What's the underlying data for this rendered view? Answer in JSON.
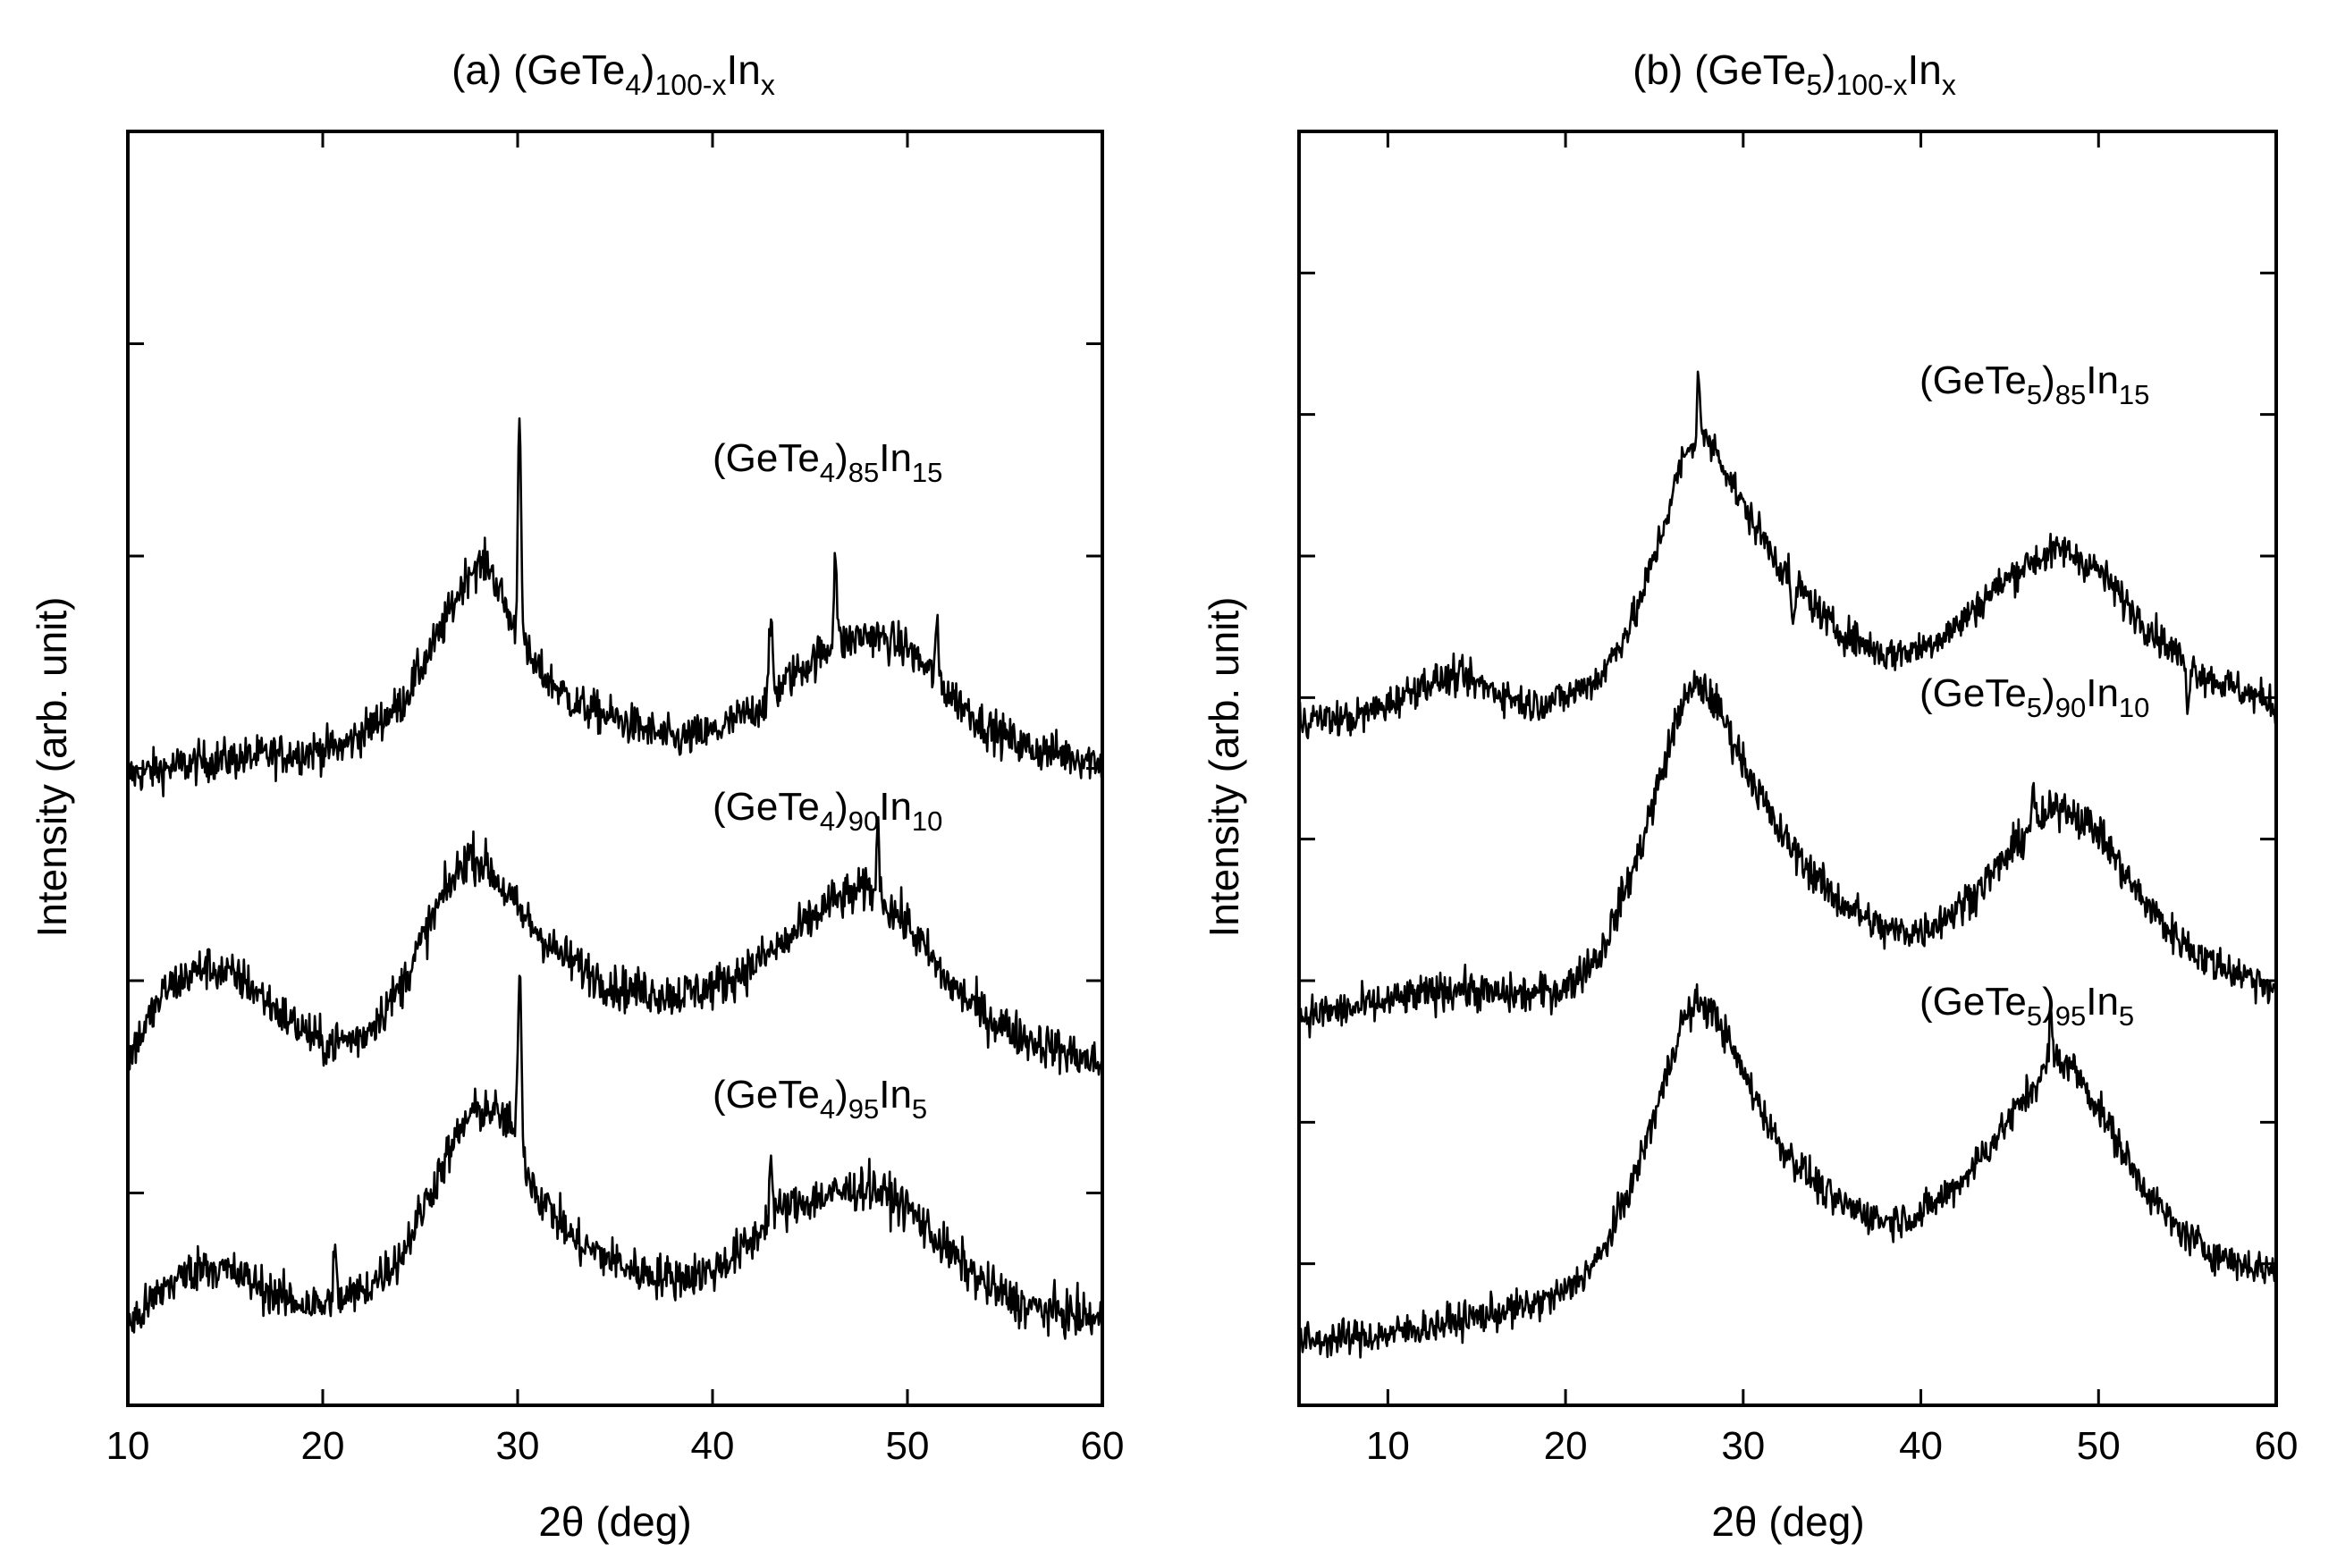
{
  "chart_data": [
    {
      "type": "line",
      "panel_label": "(a)",
      "title_base": "(GeTe",
      "title_base_sub": "4",
      "title_paren_close": ")",
      "title_sub": "100-x",
      "title_element": "In",
      "title_element_sub": "x",
      "xlabel": "2θ (deg)",
      "ylabel": "Intensity (arb. unit)",
      "xlim": [
        10,
        60
      ],
      "ylim": [
        0,
        9
      ],
      "x_ticks": [
        10,
        20,
        30,
        40,
        50,
        60
      ],
      "x_tick_labels": [
        "10",
        "20",
        "30",
        "40",
        "50",
        "60"
      ],
      "y_ticks": [
        1.5,
        3,
        4.5,
        6,
        7.5
      ],
      "y_tick_labels_visible": false,
      "grid": false,
      "series": [
        {
          "name": "(GeTe4)85In15",
          "label_base": "(GeTe",
          "label_base_sub": "4",
          "label_paren": ")",
          "label_sub": "85",
          "label_element": "In",
          "label_element_sub": "15",
          "x": [
            10,
            14,
            18,
            21,
            24,
            26,
            27.5,
            28.5,
            29.5,
            30,
            31,
            33,
            36,
            38,
            40,
            42,
            43,
            44,
            46,
            48,
            50,
            52,
            54,
            56,
            58,
            60
          ],
          "values": [
            4.45,
            4.55,
            4.6,
            4.65,
            4.95,
            5.45,
            5.9,
            5.95,
            5.6,
            5.4,
            5.2,
            4.95,
            4.8,
            4.7,
            4.75,
            4.9,
            5.0,
            5.15,
            5.35,
            5.45,
            5.35,
            5.05,
            4.8,
            4.65,
            4.6,
            4.55
          ],
          "peaks": [
            [
              30.1,
              1.65
            ],
            [
              43.0,
              0.55
            ],
            [
              46.3,
              0.65
            ],
            [
              51.5,
              0.35
            ]
          ],
          "noise": 0.14
        },
        {
          "name": "(GeTe4)90In10",
          "label_base": "(GeTe",
          "label_base_sub": "4",
          "label_paren": ")",
          "label_sub": "90",
          "label_element": "In",
          "label_element_sub": "10",
          "x": [
            10,
            12,
            14,
            16,
            18,
            20,
            22,
            24,
            26,
            27.5,
            28.5,
            30,
            32,
            35,
            38,
            40,
            42,
            44,
            46,
            48,
            50,
            52,
            54,
            56,
            58,
            60
          ],
          "values": [
            2.45,
            2.95,
            3.1,
            3.0,
            2.75,
            2.55,
            2.6,
            2.95,
            3.55,
            3.9,
            3.8,
            3.5,
            3.2,
            2.95,
            2.9,
            2.95,
            3.1,
            3.3,
            3.55,
            3.65,
            3.4,
            3.0,
            2.75,
            2.6,
            2.5,
            2.4
          ],
          "peaks": [
            [
              48.5,
              0.45
            ]
          ],
          "noise": 0.15
        },
        {
          "name": "(GeTe4)95In5",
          "label_base": "(GeTe",
          "label_base_sub": "4",
          "label_paren": ")",
          "label_sub": "95",
          "label_element": "In",
          "label_element_sub": "5",
          "x": [
            10,
            12,
            14,
            16,
            18,
            20,
            22,
            24,
            26,
            27.5,
            28.5,
            29.5,
            30,
            31,
            33,
            36,
            38,
            40,
            42,
            43,
            45,
            48,
            50,
            52,
            54,
            56,
            58,
            60
          ],
          "values": [
            0.55,
            0.85,
            1.0,
            0.9,
            0.75,
            0.7,
            0.8,
            1.05,
            1.65,
            2.05,
            2.1,
            2.0,
            1.85,
            1.5,
            1.15,
            0.95,
            0.9,
            0.95,
            1.15,
            1.35,
            1.45,
            1.55,
            1.4,
            1.1,
            0.85,
            0.7,
            0.65,
            0.6
          ],
          "peaks": [
            [
              30.1,
              1.35
            ],
            [
              43.0,
              0.35
            ],
            [
              20.6,
              0.35
            ]
          ],
          "noise": 0.15
        }
      ]
    },
    {
      "type": "line",
      "panel_label": "(b)",
      "title_base": "(GeTe",
      "title_base_sub": "5",
      "title_paren_close": ")",
      "title_sub": "100-x",
      "title_element": "In",
      "title_element_sub": "x",
      "xlabel": "2θ (deg)",
      "ylabel": "Intensity (arb. unit)",
      "xlim": [
        5,
        60
      ],
      "ylim": [
        0,
        9
      ],
      "x_ticks": [
        10,
        20,
        30,
        40,
        50,
        60
      ],
      "x_tick_labels": [
        "10",
        "20",
        "30",
        "40",
        "50",
        "60"
      ],
      "y_ticks": [
        1,
        2,
        3,
        4,
        5,
        6,
        7,
        8
      ],
      "y_tick_labels_visible": false,
      "grid": false,
      "series": [
        {
          "name": "(GeTe5)85In15",
          "label_base": "(GeTe",
          "label_base_sub": "5",
          "label_paren": ")",
          "label_sub": "85",
          "label_element": "In",
          "label_element_sub": "15",
          "x": [
            5,
            8,
            10,
            12,
            14,
            16,
            18,
            20,
            22,
            24,
            25.5,
            26.5,
            27.5,
            28.5,
            30,
            32,
            35,
            38,
            40,
            42,
            44,
            46,
            48,
            50,
            52,
            54,
            56,
            58,
            60
          ],
          "values": [
            4.85,
            4.85,
            4.95,
            5.1,
            5.15,
            5.05,
            4.95,
            5.0,
            5.15,
            5.6,
            6.2,
            6.65,
            6.85,
            6.75,
            6.35,
            5.95,
            5.5,
            5.3,
            5.35,
            5.5,
            5.75,
            5.95,
            6.05,
            5.9,
            5.6,
            5.35,
            5.15,
            5.05,
            4.95
          ],
          "peaks": [
            [
              27.5,
              0.45
            ],
            [
              32.8,
              -0.4
            ],
            [
              55.0,
              -0.3
            ]
          ],
          "noise": 0.12
        },
        {
          "name": "(GeTe5)90In10",
          "label_base": "(GeTe",
          "label_base_sub": "5",
          "label_paren": ")",
          "label_sub": "90",
          "label_element": "In",
          "label_element_sub": "10",
          "x": [
            5,
            8,
            10,
            12,
            14,
            16,
            18,
            20,
            22,
            24,
            25.5,
            26.5,
            27.5,
            28.5,
            30,
            32,
            35,
            38,
            40,
            42,
            44,
            46,
            48,
            50,
            52,
            54,
            56,
            58,
            60
          ],
          "values": [
            2.75,
            2.8,
            2.85,
            2.9,
            2.95,
            2.9,
            2.9,
            2.95,
            3.2,
            3.85,
            4.5,
            4.95,
            5.1,
            4.95,
            4.55,
            4.05,
            3.6,
            3.35,
            3.35,
            3.5,
            3.75,
            4.05,
            4.25,
            4.05,
            3.65,
            3.35,
            3.15,
            3.05,
            2.95
          ],
          "peaks": [
            [
              46.3,
              0.3
            ]
          ],
          "noise": 0.13
        },
        {
          "name": "(GeTe5)95In5",
          "label_base": "(GeTe",
          "label_base_sub": "5",
          "label_paren": ")",
          "label_sub": "95",
          "label_element": "In",
          "label_element_sub": "5",
          "x": [
            5,
            8,
            10,
            12,
            14,
            16,
            18,
            20,
            22,
            24,
            25.5,
            26.5,
            27.5,
            28.5,
            30,
            32,
            35,
            38,
            40,
            42,
            44,
            46,
            47.5,
            48.5,
            50,
            52,
            54,
            56,
            58,
            60
          ],
          "values": [
            0.45,
            0.48,
            0.5,
            0.55,
            0.6,
            0.65,
            0.7,
            0.8,
            1.05,
            1.65,
            2.25,
            2.7,
            2.85,
            2.75,
            2.35,
            1.85,
            1.45,
            1.3,
            1.35,
            1.55,
            1.85,
            2.2,
            2.45,
            2.4,
            2.1,
            1.65,
            1.3,
            1.1,
            1.0,
            0.95
          ],
          "peaks": [
            [
              47.3,
              0.35
            ]
          ],
          "noise": 0.12
        }
      ]
    }
  ]
}
